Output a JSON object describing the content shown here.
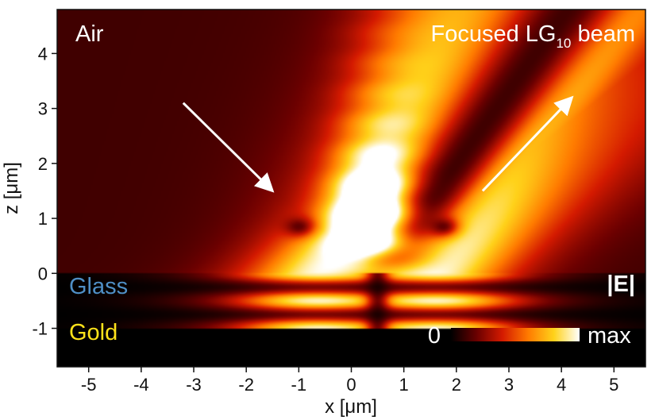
{
  "chart_data": {
    "type": "heatmap",
    "title": "",
    "xlabel": "x [μm]",
    "ylabel": "z [μm]",
    "xlim": [
      -5.6,
      5.6
    ],
    "ylim": [
      -1.7,
      4.8
    ],
    "x_ticks": [
      -5,
      -4,
      -3,
      -2,
      -1,
      0,
      1,
      2,
      3,
      4,
      5
    ],
    "y_ticks": [
      -1,
      0,
      1,
      2,
      3,
      4
    ],
    "x_tick_labels": [
      "-5",
      "-4",
      "-3",
      "-2",
      "-1",
      "0",
      "1",
      "2",
      "3",
      "4",
      "5"
    ],
    "y_tick_labels": [
      "-1",
      "0",
      "1",
      "2",
      "3",
      "4"
    ],
    "grid": false,
    "regions": [
      {
        "label": "Air",
        "z_range": [
          0,
          4.8
        ],
        "color": "#ffffff"
      },
      {
        "label": "Glass",
        "z_range": [
          -1,
          0
        ],
        "color": "#4f8fc6"
      },
      {
        "label": "Gold",
        "z_range": [
          -1.7,
          -1
        ],
        "color": "#ffe21a"
      }
    ],
    "beam_label": {
      "prefix": "Focused LG",
      "subscript": "10",
      "suffix": " beam"
    },
    "field_label": "|E|",
    "colorbar": {
      "label_min": "0",
      "label_max": "max",
      "colors": [
        "#000000",
        "#6a0000",
        "#d41a00",
        "#ff7a00",
        "#ffd21a",
        "#ffffff"
      ]
    },
    "arrows": [
      {
        "name": "incident",
        "from": [
          -3.2,
          3.1
        ],
        "to": [
          -1.5,
          1.5
        ]
      },
      {
        "name": "reflected",
        "from": [
          2.5,
          1.5
        ],
        "to": [
          4.2,
          3.2
        ]
      }
    ],
    "focus_center_x": 0.5
  }
}
